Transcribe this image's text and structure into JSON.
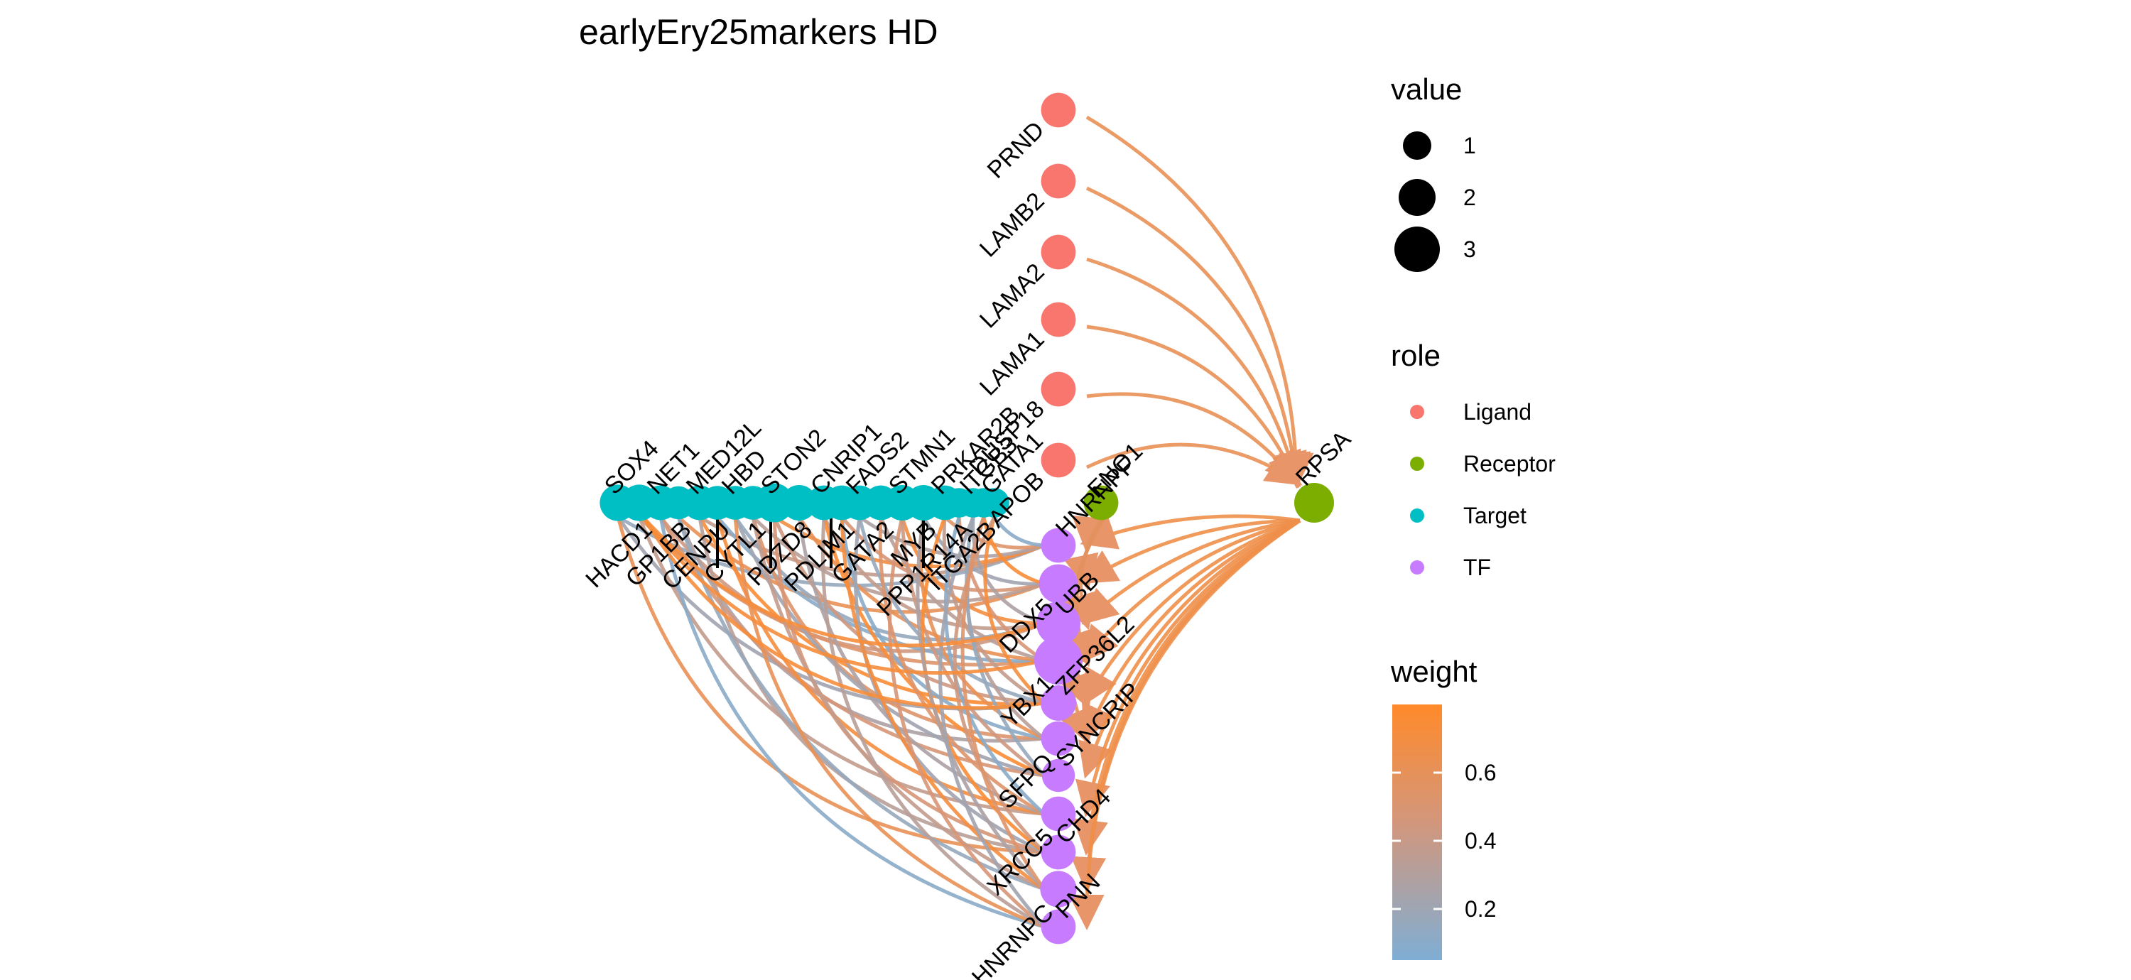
{
  "title": "earlyEry25markers HD",
  "colors": {
    "Ligand": "#F8766D",
    "Receptor": "#7CAE00",
    "Target": "#00BFC4",
    "TF": "#C77CFF",
    "weight_low": "#7FAED4",
    "weight_mid": "#D4967A",
    "weight_high": "#FF8A2A"
  },
  "legend": {
    "value": {
      "title": "value",
      "items": [
        {
          "label": "1",
          "v": 1
        },
        {
          "label": "2",
          "v": 2
        },
        {
          "label": "3",
          "v": 3
        }
      ]
    },
    "role": {
      "title": "role",
      "items": [
        "Ligand",
        "Receptor",
        "Target",
        "TF"
      ]
    },
    "weight": {
      "title": "weight",
      "ticks": [
        {
          "label": "0.6",
          "v": 0.6
        },
        {
          "label": "0.4",
          "v": 0.4
        },
        {
          "label": "0.2",
          "v": 0.2
        }
      ],
      "min": 0.05,
      "max": 0.8
    }
  },
  "nodes": {
    "ligands": [
      {
        "label": "PRND",
        "value": 1.4
      },
      {
        "label": "LAMB2",
        "value": 1.4
      },
      {
        "label": "LAMA2",
        "value": 1.4
      },
      {
        "label": "LAMA1",
        "value": 1.4
      },
      {
        "label": "DUSP18",
        "value": 1.4
      },
      {
        "label": "APOB",
        "value": 1.4
      }
    ],
    "receptors": [
      {
        "label": "ENO1",
        "value": 1.4
      },
      {
        "label": "RPSA",
        "value": 2.0
      }
    ],
    "targets": [
      {
        "label": "SOX4",
        "value": 1.6
      },
      {
        "label": "HACD1",
        "value": 1.6
      },
      {
        "label": "NET1",
        "value": 1.4
      },
      {
        "label": "GP1BB",
        "value": 1.2
      },
      {
        "label": "MED12L",
        "value": 1.4
      },
      {
        "label": "CENPU",
        "value": 1.3
      },
      {
        "label": "HBD",
        "value": 1.3
      },
      {
        "label": "CYTL1",
        "value": 1.3
      },
      {
        "label": "STON2",
        "value": 1.9
      },
      {
        "label": "PDZD8",
        "value": 1.5
      },
      {
        "label": "CNRIP1",
        "value": 1.4
      },
      {
        "label": "PDLIM1",
        "value": 1.4
      },
      {
        "label": "FADS2",
        "value": 1.4
      },
      {
        "label": "GATA2",
        "value": 1.4
      },
      {
        "label": "STMN1",
        "value": 1.5
      },
      {
        "label": "MYB",
        "value": 1.5
      },
      {
        "label": "PRKAR2B",
        "value": 1.4
      },
      {
        "label": "PPP1R14A",
        "value": 0.8
      },
      {
        "label": "ITGB3",
        "value": 0.8
      },
      {
        "label": "ITGA2B",
        "value": 0.8
      },
      {
        "label": "GATA1",
        "value": 0.8
      }
    ],
    "tfs": [
      {
        "label": "HNRNPF",
        "value": 1.4
      },
      {
        "label": "DDX5",
        "value": 1.9
      },
      {
        "label": "UBB",
        "value": 2.5
      },
      {
        "label": "YBX1",
        "value": 3.0
      },
      {
        "label": "ZFP36L2",
        "value": 1.5
      },
      {
        "label": "SFPQ",
        "value": 1.4
      },
      {
        "label": "SYNCRIP",
        "value": 1.2
      },
      {
        "label": "XRCC5",
        "value": 1.4
      },
      {
        "label": "CHD4",
        "value": 1.4
      },
      {
        "label": "HNRNPC",
        "value": 1.6
      },
      {
        "label": "PNN",
        "value": 1.4
      }
    ]
  }
}
